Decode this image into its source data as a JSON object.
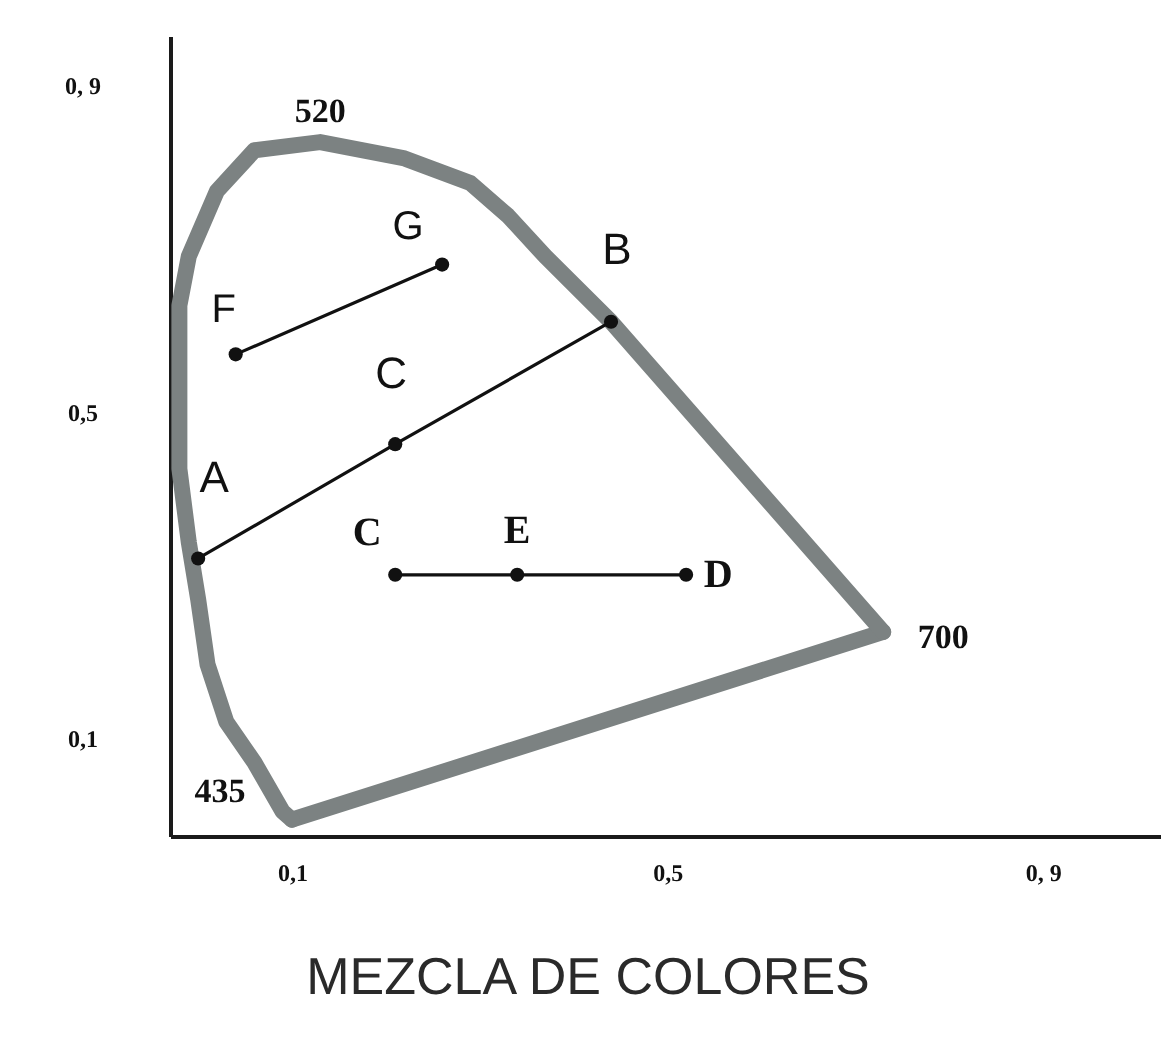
{
  "chart_data": {
    "type": "line",
    "title": "MEZCLA DE COLORES",
    "xlim": [
      -0.03,
      1.025
    ],
    "ylim": [
      -0.02,
      0.96
    ],
    "xticks": [
      {
        "value": 0.1,
        "label": "0,1"
      },
      {
        "value": 0.5,
        "label": "0,5"
      },
      {
        "value": 0.9,
        "label": "0, 9"
      }
    ],
    "yticks": [
      {
        "value": 0.1,
        "label": "0,1"
      },
      {
        "value": 0.5,
        "label": "0,5"
      },
      {
        "value": 0.9,
        "label": "0, 9"
      }
    ],
    "series": [
      {
        "color": "#7c8282",
        "marker": "none",
        "x": [
          0.1,
          0.73
        ],
        "values": [
          0.0,
          0.23
        ]
      },
      {
        "color": "#7c8282",
        "marker": "none",
        "x": [
          0.73,
          0.44,
          0.37,
          0.33,
          0.29,
          0.22,
          0.13,
          0.06,
          0.02,
          -0.01,
          -0.02,
          -0.02,
          -0.02,
          -0.01,
          0.0,
          0.01,
          0.03,
          0.06,
          0.09,
          0.1
        ],
        "values": [
          0.23,
          0.61,
          0.69,
          0.74,
          0.78,
          0.81,
          0.83,
          0.82,
          0.77,
          0.69,
          0.63,
          0.55,
          0.43,
          0.34,
          0.27,
          0.19,
          0.12,
          0.07,
          0.01,
          0.0
        ]
      },
      {
        "color": "#111111",
        "marker": "circle",
        "x": [
          0.0,
          0.21,
          0.44
        ],
        "values": [
          0.32,
          0.46,
          0.61
        ]
      },
      {
        "color": "#111111",
        "marker": "circle",
        "x": [
          0.04,
          0.26
        ],
        "values": [
          0.57,
          0.68
        ]
      },
      {
        "color": "#111111",
        "marker": "circle",
        "x": [
          0.21,
          0.34,
          0.52
        ],
        "values": [
          0.3,
          0.3,
          0.3
        ]
      }
    ],
    "annotations": [
      {
        "text": "520",
        "x": 0.13,
        "y": 0.83
      },
      {
        "text": "700",
        "x": 0.73,
        "y": 0.23
      },
      {
        "text": "435",
        "x": 0.1,
        "y": 0.0
      },
      {
        "text": "A",
        "x": 0.0,
        "y": 0.32
      },
      {
        "text": "B",
        "x": 0.44,
        "y": 0.61
      },
      {
        "text": "C",
        "x": 0.21,
        "y": 0.46
      },
      {
        "text": "F",
        "x": 0.04,
        "y": 0.57
      },
      {
        "text": "G",
        "x": 0.26,
        "y": 0.68
      },
      {
        "text": "C",
        "x": 0.21,
        "y": 0.3
      },
      {
        "text": "E",
        "x": 0.34,
        "y": 0.3
      },
      {
        "text": "D",
        "x": 0.52,
        "y": 0.3
      }
    ]
  }
}
